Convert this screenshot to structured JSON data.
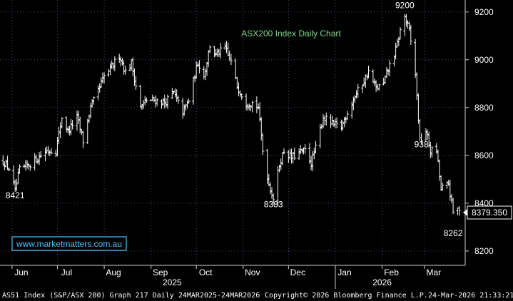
{
  "chart_data": {
    "type": "ohlc",
    "title": "ASX200 Index Daily Chart",
    "watermark": "www.marketmatters.com.au",
    "last_price_label": "8379.350",
    "annotations": [
      {
        "text": "9200",
        "x": "2026-02-16",
        "y": 9215
      },
      {
        "text": "8421",
        "x": "2025-06-03",
        "y": 8421
      },
      {
        "text": "8383",
        "x": "2025-11-21",
        "y": 8383
      },
      {
        "text": "8262",
        "x": "2026-03-20",
        "y": 8262
      },
      {
        "text": "938",
        "x": "2026-02-27",
        "y": 8634,
        "color": "#ffff00"
      }
    ],
    "ylim": [
      8140,
      9250
    ],
    "y_ticks": [
      8200,
      8400,
      8600,
      8800,
      9000,
      9200
    ],
    "y_tick_labels": [
      "8200",
      "8400",
      "8600",
      "8800",
      "9000",
      "9200"
    ],
    "x_ticks": [
      {
        "label": "Jun",
        "date": "2025-06-01"
      },
      {
        "label": "Jul",
        "date": "2025-07-01"
      },
      {
        "label": "Aug",
        "date": "2025-08-01"
      },
      {
        "label": "Sep",
        "date": "2025-09-01"
      },
      {
        "label": "Oct",
        "date": "2025-10-01"
      },
      {
        "label": "Nov",
        "date": "2025-11-01"
      },
      {
        "label": "Dec",
        "date": "2025-12-01"
      },
      {
        "label": "Jan",
        "date": "2026-01-01"
      },
      {
        "label": "Feb",
        "date": "2026-02-01"
      },
      {
        "label": "Mar",
        "date": "2026-03-01"
      }
    ],
    "x_start": "2025-05-24",
    "x_end": "2026-03-28",
    "years": [
      {
        "label": "2025",
        "date": "2025-09-15"
      },
      {
        "label": "2026",
        "date": "2026-02-01"
      }
    ],
    "year_divider_date": "2026-01-01",
    "colors": {
      "background": "#000000",
      "bars": "#ffffff",
      "title": "#7fd88a",
      "accent_label": "#ffff00",
      "watermark_text": "#4cc3ff",
      "watermark_border": "#4cc3ff"
    },
    "anchors": [
      [
        "2025-05-26",
        8575
      ],
      [
        "2025-05-30",
        8545
      ],
      [
        "2025-06-03",
        8450
      ],
      [
        "2025-06-06",
        8540
      ],
      [
        "2025-06-12",
        8560
      ],
      [
        "2025-06-18",
        8590
      ],
      [
        "2025-06-24",
        8620
      ],
      [
        "2025-06-30",
        8620
      ],
      [
        "2025-07-04",
        8760
      ],
      [
        "2025-07-08",
        8700
      ],
      [
        "2025-07-14",
        8760
      ],
      [
        "2025-07-18",
        8660
      ],
      [
        "2025-07-23",
        8800
      ],
      [
        "2025-07-28",
        8870
      ],
      [
        "2025-08-01",
        8930
      ],
      [
        "2025-08-05",
        8960
      ],
      [
        "2025-08-11",
        9020
      ],
      [
        "2025-08-15",
        8950
      ],
      [
        "2025-08-19",
        8985
      ],
      [
        "2025-08-25",
        8800
      ],
      [
        "2025-08-29",
        8830
      ],
      [
        "2025-09-04",
        8830
      ],
      [
        "2025-09-10",
        8820
      ],
      [
        "2025-09-16",
        8860
      ],
      [
        "2025-09-22",
        8780
      ],
      [
        "2025-09-26",
        8830
      ],
      [
        "2025-10-02",
        8990
      ],
      [
        "2025-10-06",
        8930
      ],
      [
        "2025-10-10",
        9060
      ],
      [
        "2025-10-14",
        9020
      ],
      [
        "2025-10-20",
        9050
      ],
      [
        "2025-10-24",
        8990
      ],
      [
        "2025-10-28",
        8890
      ],
      [
        "2025-11-03",
        8820
      ],
      [
        "2025-11-07",
        8820
      ],
      [
        "2025-11-11",
        8800
      ],
      [
        "2025-11-14",
        8620
      ],
      [
        "2025-11-18",
        8480
      ],
      [
        "2025-11-21",
        8420
      ],
      [
        "2025-11-25",
        8560
      ],
      [
        "2025-11-28",
        8620
      ],
      [
        "2025-12-03",
        8590
      ],
      [
        "2025-12-08",
        8610
      ],
      [
        "2025-12-12",
        8620
      ],
      [
        "2025-12-16",
        8570
      ],
      [
        "2025-12-19",
        8630
      ],
      [
        "2025-12-24",
        8760
      ],
      [
        "2025-12-30",
        8730
      ],
      [
        "2026-01-05",
        8720
      ],
      [
        "2026-01-09",
        8780
      ],
      [
        "2026-01-14",
        8850
      ],
      [
        "2026-01-19",
        8900
      ],
      [
        "2026-01-23",
        8950
      ],
      [
        "2026-01-28",
        8880
      ],
      [
        "2026-02-02",
        8900
      ],
      [
        "2026-02-05",
        8960
      ],
      [
        "2026-02-10",
        9040
      ],
      [
        "2026-02-13",
        9120
      ],
      [
        "2026-02-16",
        9180
      ],
      [
        "2026-02-19",
        9120
      ],
      [
        "2026-02-23",
        8940
      ],
      [
        "2026-02-26",
        8660
      ],
      [
        "2026-03-02",
        8700
      ],
      [
        "2026-03-05",
        8620
      ],
      [
        "2026-03-09",
        8620
      ],
      [
        "2026-03-12",
        8460
      ],
      [
        "2026-03-17",
        8480
      ],
      [
        "2026-03-20",
        8360
      ],
      [
        "2026-03-24",
        8379
      ]
    ]
  },
  "footer": {
    "left": "AS51 Index (S&P/ASX 200) Graph 217 Daily 24MAR2025-24MAR2026",
    "middle": "Copyright© 2026 Bloomberg Finance L.P.",
    "right": "24-Mar-2026 21:33:21"
  }
}
